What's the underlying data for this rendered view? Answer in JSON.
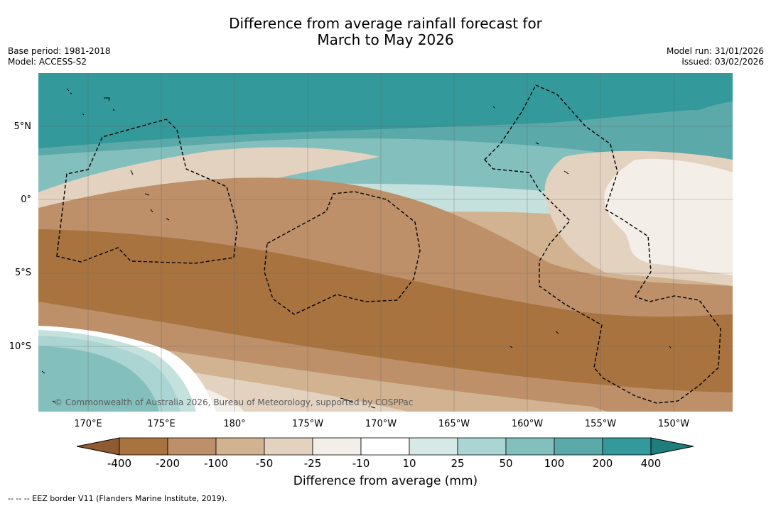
{
  "title": {
    "line1": "Difference from average rainfall forecast for",
    "line2": "March to May 2026"
  },
  "meta": {
    "base_period": "Base period: 1981-2018",
    "model": "Model: ACCESS-S2",
    "model_run": "Model run: 31/01/2026",
    "issued": "Issued: 03/02/2026"
  },
  "map": {
    "lat_labels": [
      "5°N",
      "0°",
      "5°S",
      "10°S"
    ],
    "lon_labels": [
      "170°E",
      "175°E",
      "180°",
      "175°W",
      "170°W",
      "165°W",
      "160°W",
      "155°W",
      "150°W"
    ],
    "credit": "© Commonwealth of Australia 2026, Bureau of Meteorology, supported by COSPPac"
  },
  "colorbar": {
    "ticks": [
      "-400",
      "-200",
      "-100",
      "-50",
      "-25",
      "-10",
      "10",
      "25",
      "50",
      "100",
      "200",
      "400"
    ],
    "colors": [
      "#8f5a30",
      "#a8733f",
      "#bd9069",
      "#d2b391",
      "#e4d2c0",
      "#f3eee7",
      "#ffffff",
      "#d6e9e5",
      "#abd5d2",
      "#83c0bd",
      "#5ba9a9",
      "#33999a",
      "#1f7d7e"
    ],
    "title": "Difference from average (mm)"
  },
  "footnote": "--  --  -- EEZ border V11 (Flanders Marine Institute, 2019)."
}
